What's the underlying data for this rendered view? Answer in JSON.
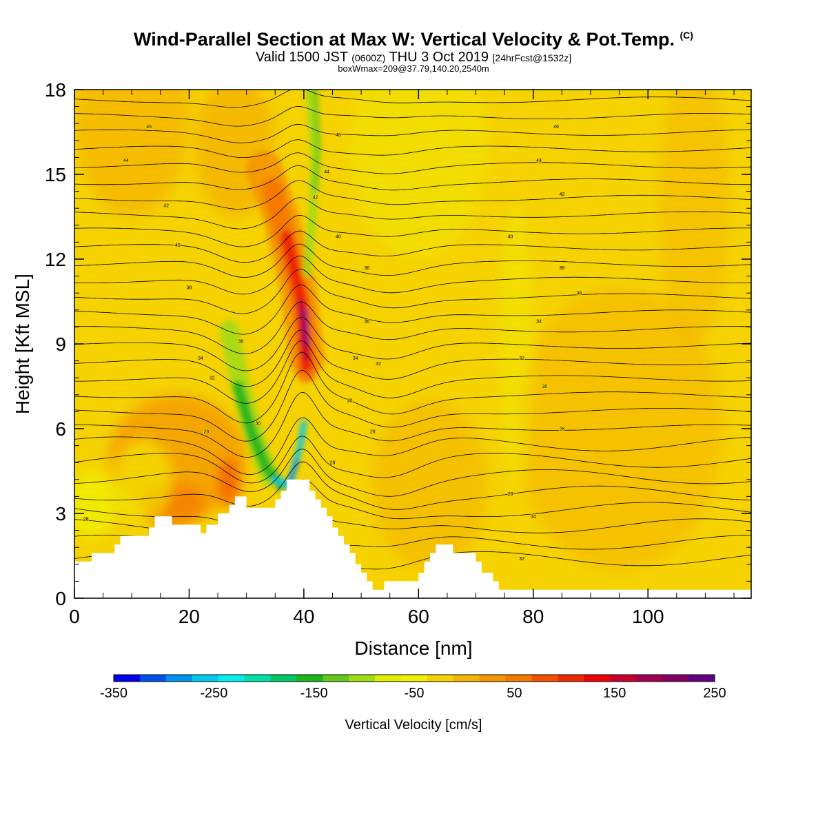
{
  "header": {
    "title_main": "Wind-Parallel Section at Max W: Vertical Velocity & Pot.Temp.",
    "title_mark": "(C)",
    "valid_prefix": "Valid 1500 JST",
    "valid_utc": "(0600Z)",
    "valid_date": "THU 3 Oct 2019",
    "valid_fcst": "[24hrFcst@1532z]",
    "subtitle": "boxWmax=209@37.79,140.20,2540m"
  },
  "chart_data": {
    "type": "heatmap",
    "xlabel": "Distance [nm]",
    "ylabel": "Height [Kft MSL]",
    "xlim": [
      0,
      118
    ],
    "ylim": [
      0,
      18
    ],
    "xticks": [
      0,
      20,
      40,
      60,
      80,
      100
    ],
    "yticks": [
      0,
      3,
      6,
      9,
      12,
      15,
      18
    ],
    "colorbar": {
      "label": "Vertical Velocity [cm/s]",
      "ticks": [
        "-350",
        "-250",
        "-150",
        "-50",
        "50",
        "150",
        "250"
      ],
      "levels": [
        -350,
        250
      ],
      "colors": [
        "#0000f0",
        "#0050f0",
        "#0090f0",
        "#00c8f0",
        "#00f0f0",
        "#00e0a8",
        "#00c864",
        "#1eb41e",
        "#64c81e",
        "#a0dc14",
        "#dcf000",
        "#f0f000",
        "#f5d200",
        "#f5b400",
        "#f59600",
        "#f57800",
        "#f55000",
        "#f02800",
        "#f00000",
        "#c8002d",
        "#a00050",
        "#820064",
        "#640082"
      ]
    },
    "theta_contours": [
      {
        "label": "28",
        "x": 2,
        "y": 2.8
      },
      {
        "label": "28",
        "x": 23,
        "y": 5.9
      },
      {
        "label": "30",
        "x": 32,
        "y": 6.2
      },
      {
        "label": "30",
        "x": 48,
        "y": 7.0
      },
      {
        "label": "28",
        "x": 45,
        "y": 4.8
      },
      {
        "label": "28",
        "x": 52,
        "y": 5.9
      },
      {
        "label": "30",
        "x": 82,
        "y": 7.5
      },
      {
        "label": "28",
        "x": 85,
        "y": 6.0
      },
      {
        "label": "28",
        "x": 76,
        "y": 3.7
      },
      {
        "label": "34",
        "x": 80,
        "y": 2.9
      },
      {
        "label": "32",
        "x": 78,
        "y": 1.4
      },
      {
        "label": "32",
        "x": 24,
        "y": 7.8
      },
      {
        "label": "34",
        "x": 22,
        "y": 8.5
      },
      {
        "label": "36",
        "x": 29,
        "y": 9.1
      },
      {
        "label": "34",
        "x": 49,
        "y": 8.5
      },
      {
        "label": "32",
        "x": 53,
        "y": 8.3
      },
      {
        "label": "32",
        "x": 78,
        "y": 8.5
      },
      {
        "label": "36",
        "x": 51,
        "y": 9.8
      },
      {
        "label": "34",
        "x": 81,
        "y": 9.8
      },
      {
        "label": "38",
        "x": 20,
        "y": 11.0
      },
      {
        "label": "36",
        "x": 51,
        "y": 11.7
      },
      {
        "label": "38",
        "x": 85,
        "y": 11.7
      },
      {
        "label": "38",
        "x": 88,
        "y": 10.8
      },
      {
        "label": "40",
        "x": 18,
        "y": 12.5
      },
      {
        "label": "40",
        "x": 46,
        "y": 12.8
      },
      {
        "label": "40",
        "x": 76,
        "y": 12.8
      },
      {
        "label": "42",
        "x": 16,
        "y": 13.9
      },
      {
        "label": "42",
        "x": 42,
        "y": 14.2
      },
      {
        "label": "42",
        "x": 85,
        "y": 14.3
      },
      {
        "label": "44",
        "x": 9,
        "y": 15.5
      },
      {
        "label": "44",
        "x": 44,
        "y": 15.1
      },
      {
        "label": "44",
        "x": 81,
        "y": 15.5
      },
      {
        "label": "46",
        "x": 13,
        "y": 16.7
      },
      {
        "label": "46",
        "x": 46,
        "y": 16.4
      },
      {
        "label": "46",
        "x": 84,
        "y": 16.7
      }
    ],
    "updraft_max": {
      "value": 209,
      "x": 40.5,
      "y": 9.5
    },
    "terrain": [
      [
        0,
        1.3
      ],
      [
        3,
        1.3
      ],
      [
        3,
        1.6
      ],
      [
        7,
        1.6
      ],
      [
        7,
        1.9
      ],
      [
        8,
        1.9
      ],
      [
        8,
        2.2
      ],
      [
        13,
        2.2
      ],
      [
        13,
        2.5
      ],
      [
        14,
        2.5
      ],
      [
        14,
        2.9
      ],
      [
        17,
        2.9
      ],
      [
        17,
        2.6
      ],
      [
        22,
        2.6
      ],
      [
        22,
        2.3
      ],
      [
        23,
        2.3
      ],
      [
        23,
        2.6
      ],
      [
        25,
        2.6
      ],
      [
        25,
        3.0
      ],
      [
        27,
        3.0
      ],
      [
        27,
        3.3
      ],
      [
        28,
        3.3
      ],
      [
        28,
        3.6
      ],
      [
        30,
        3.6
      ],
      [
        30,
        3.2
      ],
      [
        35,
        3.2
      ],
      [
        35,
        3.5
      ],
      [
        36,
        3.5
      ],
      [
        36,
        3.8
      ],
      [
        37,
        3.8
      ],
      [
        37,
        4.2
      ],
      [
        41,
        4.2
      ],
      [
        41,
        3.8
      ],
      [
        42,
        3.8
      ],
      [
        42,
        3.5
      ],
      [
        43,
        3.5
      ],
      [
        43,
        3.2
      ],
      [
        44,
        3.2
      ],
      [
        44,
        2.9
      ],
      [
        45,
        2.9
      ],
      [
        45,
        2.5
      ],
      [
        46,
        2.5
      ],
      [
        46,
        2.2
      ],
      [
        47,
        2.2
      ],
      [
        47,
        1.9
      ],
      [
        48,
        1.9
      ],
      [
        48,
        1.6
      ],
      [
        49,
        1.6
      ],
      [
        49,
        1.2
      ],
      [
        50,
        1.2
      ],
      [
        50,
        0.9
      ],
      [
        51,
        0.9
      ],
      [
        51,
        0.6
      ],
      [
        52,
        0.6
      ],
      [
        52,
        0.3
      ],
      [
        54,
        0.3
      ],
      [
        54,
        0.6
      ],
      [
        60,
        0.6
      ],
      [
        60,
        0.9
      ],
      [
        61,
        0.9
      ],
      [
        61,
        1.3
      ],
      [
        62,
        1.3
      ],
      [
        62,
        1.6
      ],
      [
        63,
        1.6
      ],
      [
        63,
        1.9
      ],
      [
        66,
        1.9
      ],
      [
        66,
        1.6
      ],
      [
        70,
        1.6
      ],
      [
        70,
        1.3
      ],
      [
        71,
        1.3
      ],
      [
        71,
        0.9
      ],
      [
        73,
        0.9
      ],
      [
        73,
        0.6
      ],
      [
        74,
        0.6
      ],
      [
        74,
        0.3
      ],
      [
        118,
        0.3
      ]
    ]
  }
}
